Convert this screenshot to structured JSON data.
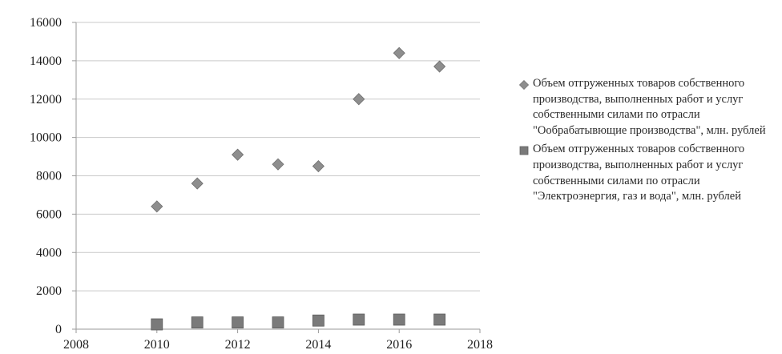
{
  "chart_data": {
    "type": "scatter",
    "title": "",
    "xlabel": "",
    "ylabel": "",
    "xlim": [
      2008,
      2018
    ],
    "ylim": [
      0,
      16000
    ],
    "x_ticks": [
      2008,
      2010,
      2012,
      2014,
      2016,
      2018
    ],
    "y_ticks": [
      0,
      2000,
      4000,
      6000,
      8000,
      10000,
      12000,
      14000,
      16000
    ],
    "grid": "horizontal",
    "legend_position": "right",
    "series": [
      {
        "name": "Объем отгруженных товаров собственного производства, выполненных работ и услуг собственными силами по отрасли \"Ообрабатывющие производства\", млн. рублей",
        "marker": "diamond",
        "color": "#8e8e8e",
        "points": [
          {
            "x": 2010,
            "y": 6400
          },
          {
            "x": 2011,
            "y": 7600
          },
          {
            "x": 2012,
            "y": 9100
          },
          {
            "x": 2013,
            "y": 8600
          },
          {
            "x": 2014,
            "y": 8500
          },
          {
            "x": 2015,
            "y": 12000
          },
          {
            "x": 2016,
            "y": 14400
          },
          {
            "x": 2017,
            "y": 13700
          }
        ]
      },
      {
        "name": "Объем отгруженных товаров собственного производства, выполненных работ и услуг собственными силами по отрасли \"Электроэнергия, газ и вода\", млн. рублей",
        "marker": "square",
        "color": "#7a7a7a",
        "points": [
          {
            "x": 2010,
            "y": 250
          },
          {
            "x": 2011,
            "y": 350
          },
          {
            "x": 2012,
            "y": 350
          },
          {
            "x": 2013,
            "y": 350
          },
          {
            "x": 2014,
            "y": 450
          },
          {
            "x": 2015,
            "y": 500
          },
          {
            "x": 2016,
            "y": 500
          },
          {
            "x": 2017,
            "y": 500
          }
        ]
      }
    ]
  }
}
